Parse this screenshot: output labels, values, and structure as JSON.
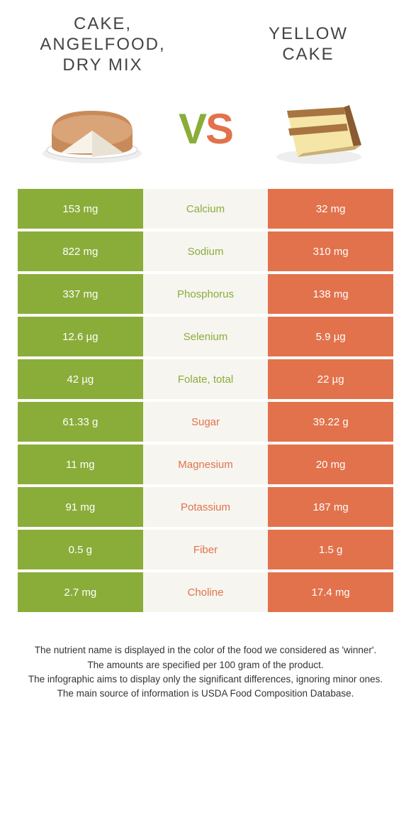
{
  "colors": {
    "left": "#8aad3a",
    "right": "#e2724c",
    "center_bg": "#f6f5f0",
    "page_bg": "#ffffff",
    "text": "#333333"
  },
  "food_left": {
    "title": "CAKE,\nANGELFOOD,\nDRY MIX"
  },
  "food_right": {
    "title": "YELLOW\nCAKE"
  },
  "vs": {
    "v": "V",
    "s": "S"
  },
  "nutrients": [
    {
      "name": "Calcium",
      "left": "153 mg",
      "right": "32 mg",
      "winner": "left"
    },
    {
      "name": "Sodium",
      "left": "822 mg",
      "right": "310 mg",
      "winner": "left"
    },
    {
      "name": "Phosphorus",
      "left": "337 mg",
      "right": "138 mg",
      "winner": "left"
    },
    {
      "name": "Selenium",
      "left": "12.6 µg",
      "right": "5.9 µg",
      "winner": "left"
    },
    {
      "name": "Folate, total",
      "left": "42 µg",
      "right": "22 µg",
      "winner": "left"
    },
    {
      "name": "Sugar",
      "left": "61.33 g",
      "right": "39.22 g",
      "winner": "right"
    },
    {
      "name": "Magnesium",
      "left": "11 mg",
      "right": "20 mg",
      "winner": "right"
    },
    {
      "name": "Potassium",
      "left": "91 mg",
      "right": "187 mg",
      "winner": "right"
    },
    {
      "name": "Fiber",
      "left": "0.5 g",
      "right": "1.5 g",
      "winner": "right"
    },
    {
      "name": "Choline",
      "left": "2.7 mg",
      "right": "17.4 mg",
      "winner": "right"
    }
  ],
  "footer": {
    "l1": "The nutrient name is displayed in the color of the food we considered as 'winner'.",
    "l2": "The amounts are specified per 100 gram of the product.",
    "l3": "The infographic aims to display only the significant differences, ignoring minor ones.",
    "l4": "The main source of information is USDA Food Composition Database."
  }
}
